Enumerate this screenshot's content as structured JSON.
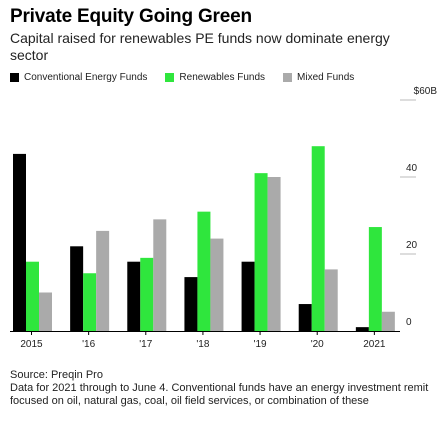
{
  "title": "Private Equity Going Green",
  "subtitle": "Capital raised for renewables PE funds now dominate energy sector",
  "legend": [
    {
      "label": "Conventional Energy Funds",
      "color": "#000000"
    },
    {
      "label": "Renewables Funds",
      "color": "#2fe63d"
    },
    {
      "label": "Mixed Funds",
      "color": "#aaaaaa"
    }
  ],
  "source": "Source: Preqin Pro",
  "note": "Data for 2021 through to June 4. Conventional funds have an energy investment remit focused on oil, natural gas, coal, oil field services, or combination of these",
  "chart_data": {
    "type": "bar",
    "categories": [
      "2015",
      "'16",
      "'17",
      "'18",
      "'19",
      "'20",
      "2021"
    ],
    "series": [
      {
        "name": "Conventional Energy Funds",
        "color": "#000000",
        "values": [
          46,
          22,
          18,
          14,
          18,
          7,
          1
        ]
      },
      {
        "name": "Renewables Funds",
        "color": "#2fe63d",
        "values": [
          18,
          15,
          19,
          31,
          41,
          48,
          27
        ]
      },
      {
        "name": "Mixed Funds",
        "color": "#aaaaaa",
        "values": [
          10,
          26,
          29,
          24,
          40,
          16,
          5
        ]
      }
    ],
    "ylim": [
      0,
      60
    ],
    "yticks": [
      {
        "value": 0,
        "label": "0"
      },
      {
        "value": 20,
        "label": "20"
      },
      {
        "value": 40,
        "label": "40"
      },
      {
        "value": 60,
        "label": "$60B"
      }
    ],
    "y_axis_side": "right",
    "legend_position": "top"
  }
}
